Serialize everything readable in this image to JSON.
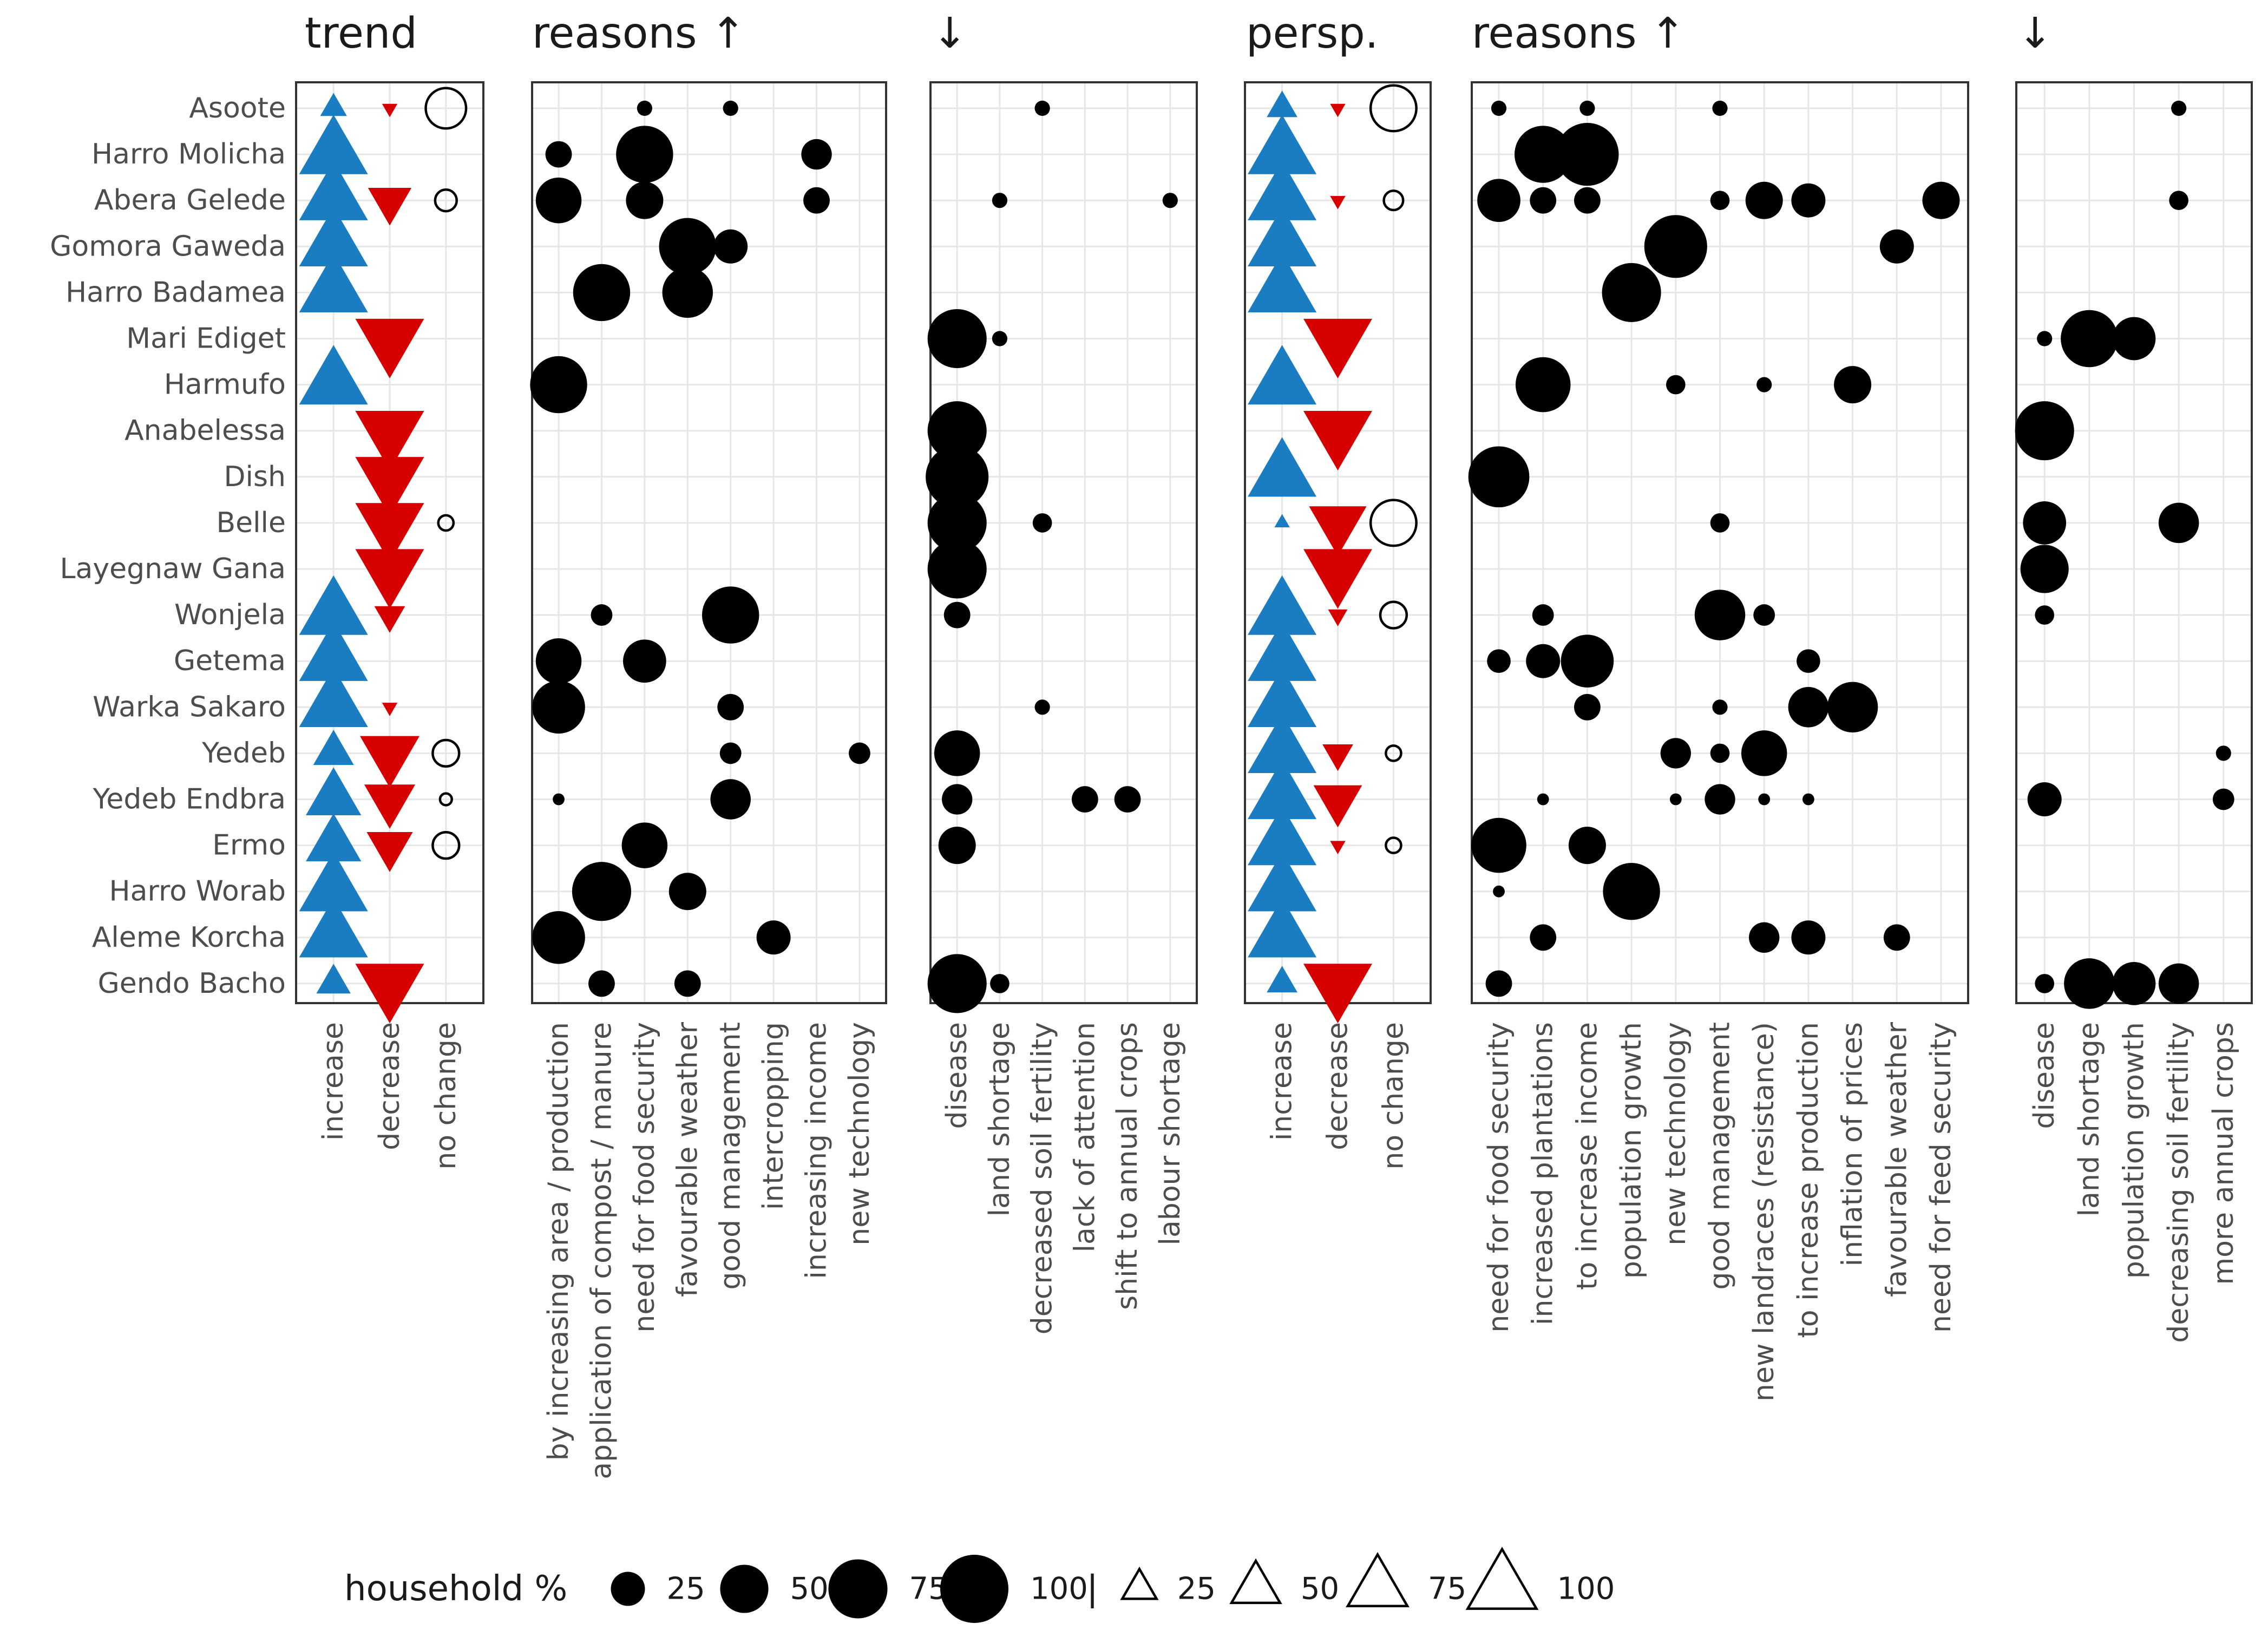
{
  "chart_data": {
    "type": "scatter",
    "rows": [
      "Asoote",
      "Harro Molicha",
      "Abera Gelede",
      "Gomora Gaweda",
      "Harro Badamea",
      "Mari Ediget",
      "Harmufo",
      "Anabelessa",
      "Dish",
      "Belle",
      "Layegnaw Gana",
      "Wonjela",
      "Getema",
      "Warka Sakaro",
      "Yedeb",
      "Yedeb Endbra",
      "Ermo",
      "Harro Worab",
      "Aleme Korcha",
      "Gendo Bacho"
    ],
    "colors": {
      "increase": "#1a7cc1",
      "decrease": "#d60000",
      "no_change": "#000000",
      "dot": "#000000",
      "grid": "#e6e6e6",
      "frame": "#333333",
      "text": "#4d4d4d",
      "title": "#1a1a1a"
    },
    "size_scale": [
      0,
      100
    ],
    "panels": [
      {
        "id": "trend",
        "title": "trend",
        "kind": "triangles",
        "columns": [
          "increase",
          "decrease",
          "no change"
        ],
        "points": [
          [
            0,
            0,
            15
          ],
          [
            0,
            1,
            5
          ],
          [
            0,
            2,
            35
          ],
          [
            1,
            0,
            100
          ],
          [
            2,
            0,
            100
          ],
          [
            2,
            1,
            40
          ],
          [
            2,
            2,
            10
          ],
          [
            3,
            0,
            100
          ],
          [
            4,
            0,
            100
          ],
          [
            5,
            1,
            100
          ],
          [
            6,
            0,
            100
          ],
          [
            7,
            1,
            100
          ],
          [
            8,
            1,
            100
          ],
          [
            9,
            1,
            100
          ],
          [
            9,
            2,
            5
          ],
          [
            10,
            1,
            100
          ],
          [
            11,
            0,
            100
          ],
          [
            11,
            1,
            20
          ],
          [
            12,
            0,
            100
          ],
          [
            13,
            0,
            100
          ],
          [
            13,
            1,
            5
          ],
          [
            14,
            0,
            35
          ],
          [
            14,
            1,
            75
          ],
          [
            14,
            2,
            15
          ],
          [
            15,
            0,
            65
          ],
          [
            15,
            1,
            55
          ],
          [
            15,
            2,
            3
          ],
          [
            16,
            0,
            65
          ],
          [
            16,
            1,
            45
          ],
          [
            16,
            2,
            15
          ],
          [
            17,
            0,
            100
          ],
          [
            18,
            0,
            100
          ],
          [
            19,
            0,
            25
          ],
          [
            19,
            1,
            100
          ]
        ]
      },
      {
        "id": "trend-reasons-up",
        "title": "reasons ↑",
        "kind": "dots",
        "columns": [
          "by increasing area / production",
          "application of compost / manure",
          "need for food security",
          "favourable weather",
          "good management",
          "intercropping",
          "increasing income",
          "new technology"
        ],
        "points": [
          [
            0,
            2,
            5
          ],
          [
            0,
            4,
            5
          ],
          [
            1,
            0,
            15
          ],
          [
            1,
            2,
            70
          ],
          [
            1,
            6,
            20
          ],
          [
            2,
            0,
            45
          ],
          [
            2,
            2,
            30
          ],
          [
            2,
            6,
            15
          ],
          [
            3,
            3,
            70
          ],
          [
            3,
            4,
            25
          ],
          [
            4,
            1,
            70
          ],
          [
            4,
            3,
            55
          ],
          [
            6,
            0,
            70
          ],
          [
            11,
            1,
            10
          ],
          [
            11,
            4,
            70
          ],
          [
            12,
            0,
            45
          ],
          [
            12,
            2,
            40
          ],
          [
            13,
            0,
            60
          ],
          [
            13,
            4,
            15
          ],
          [
            14,
            4,
            10
          ],
          [
            14,
            7,
            10
          ],
          [
            15,
            0,
            3
          ],
          [
            15,
            4,
            35
          ],
          [
            16,
            2,
            45
          ],
          [
            17,
            1,
            75
          ],
          [
            17,
            3,
            30
          ],
          [
            18,
            0,
            60
          ],
          [
            18,
            5,
            25
          ],
          [
            19,
            1,
            15
          ],
          [
            19,
            3,
            15
          ]
        ]
      },
      {
        "id": "trend-reasons-down",
        "title": "↓",
        "kind": "dots",
        "columns": [
          "disease",
          "land shortage",
          "decreased soil fertility",
          "lack of attention",
          "shift to annual crops",
          "labour shortage"
        ],
        "points": [
          [
            0,
            2,
            5
          ],
          [
            2,
            1,
            5
          ],
          [
            2,
            5,
            5
          ],
          [
            5,
            0,
            75
          ],
          [
            5,
            1,
            5
          ],
          [
            7,
            0,
            75
          ],
          [
            8,
            0,
            85
          ],
          [
            9,
            0,
            75
          ],
          [
            9,
            2,
            8
          ],
          [
            10,
            0,
            75
          ],
          [
            11,
            0,
            15
          ],
          [
            13,
            2,
            5
          ],
          [
            14,
            0,
            45
          ],
          [
            15,
            0,
            20
          ],
          [
            15,
            3,
            15
          ],
          [
            15,
            4,
            15
          ],
          [
            16,
            0,
            30
          ],
          [
            19,
            0,
            75
          ],
          [
            19,
            1,
            8
          ]
        ]
      },
      {
        "id": "persp",
        "title": "persp.",
        "kind": "triangles",
        "columns": [
          "increase",
          "decrease",
          "no change"
        ],
        "points": [
          [
            0,
            0,
            20
          ],
          [
            0,
            1,
            5
          ],
          [
            0,
            2,
            45
          ],
          [
            1,
            0,
            100
          ],
          [
            2,
            0,
            100
          ],
          [
            2,
            1,
            5
          ],
          [
            2,
            2,
            8
          ],
          [
            3,
            0,
            100
          ],
          [
            4,
            0,
            100
          ],
          [
            5,
            1,
            100
          ],
          [
            6,
            0,
            100
          ],
          [
            7,
            1,
            100
          ],
          [
            8,
            0,
            100
          ],
          [
            9,
            0,
            5
          ],
          [
            9,
            1,
            70
          ],
          [
            9,
            2,
            45
          ],
          [
            10,
            1,
            100
          ],
          [
            11,
            0,
            100
          ],
          [
            11,
            1,
            8
          ],
          [
            11,
            2,
            15
          ],
          [
            12,
            0,
            100
          ],
          [
            13,
            0,
            100
          ],
          [
            14,
            0,
            100
          ],
          [
            14,
            1,
            20
          ],
          [
            14,
            2,
            5
          ],
          [
            15,
            0,
            100
          ],
          [
            15,
            1,
            50
          ],
          [
            16,
            0,
            100
          ],
          [
            16,
            1,
            5
          ],
          [
            16,
            2,
            5
          ],
          [
            17,
            0,
            100
          ],
          [
            18,
            0,
            100
          ],
          [
            19,
            0,
            20
          ],
          [
            19,
            1,
            100
          ]
        ]
      },
      {
        "id": "persp-reasons-up",
        "title": "reasons ↑",
        "kind": "dots",
        "columns": [
          "need for food security",
          "increased plantations",
          "to increase income",
          "population growth",
          "new technology",
          "good management",
          "new landraces (resistance)",
          "to increase production",
          "inflation of prices",
          "favourable weather",
          "need for feed security"
        ],
        "points": [
          [
            0,
            0,
            5
          ],
          [
            0,
            2,
            5
          ],
          [
            0,
            5,
            5
          ],
          [
            1,
            1,
            70
          ],
          [
            1,
            2,
            85
          ],
          [
            2,
            0,
            40
          ],
          [
            2,
            1,
            15
          ],
          [
            2,
            2,
            15
          ],
          [
            2,
            5,
            8
          ],
          [
            2,
            6,
            30
          ],
          [
            2,
            7,
            25
          ],
          [
            2,
            10,
            30
          ],
          [
            3,
            4,
            85
          ],
          [
            3,
            9,
            25
          ],
          [
            4,
            3,
            75
          ],
          [
            6,
            1,
            65
          ],
          [
            6,
            4,
            8
          ],
          [
            6,
            6,
            5
          ],
          [
            6,
            8,
            30
          ],
          [
            8,
            0,
            80
          ],
          [
            9,
            5,
            8
          ],
          [
            11,
            1,
            10
          ],
          [
            11,
            5,
            55
          ],
          [
            11,
            6,
            10
          ],
          [
            12,
            0,
            12
          ],
          [
            12,
            1,
            25
          ],
          [
            12,
            2,
            60
          ],
          [
            12,
            7,
            12
          ],
          [
            13,
            2,
            15
          ],
          [
            13,
            5,
            5
          ],
          [
            13,
            7,
            35
          ],
          [
            13,
            8,
            55
          ],
          [
            14,
            4,
            20
          ],
          [
            14,
            5,
            8
          ],
          [
            14,
            6,
            45
          ],
          [
            15,
            1,
            3
          ],
          [
            15,
            4,
            3
          ],
          [
            15,
            5,
            20
          ],
          [
            15,
            6,
            3
          ],
          [
            15,
            7,
            3
          ],
          [
            16,
            0,
            65
          ],
          [
            16,
            2,
            30
          ],
          [
            17,
            0,
            3
          ],
          [
            17,
            3,
            70
          ],
          [
            18,
            1,
            15
          ],
          [
            18,
            6,
            20
          ],
          [
            18,
            7,
            25
          ],
          [
            18,
            9,
            15
          ],
          [
            19,
            0,
            15
          ]
        ]
      },
      {
        "id": "persp-reasons-down",
        "title": "↓",
        "kind": "dots",
        "columns": [
          "disease",
          "land shortage",
          "population growth",
          "decreasing soil fertility",
          "more annual crops"
        ],
        "points": [
          [
            0,
            3,
            5
          ],
          [
            2,
            3,
            8
          ],
          [
            5,
            0,
            5
          ],
          [
            5,
            1,
            70
          ],
          [
            5,
            2,
            40
          ],
          [
            7,
            0,
            75
          ],
          [
            9,
            0,
            40
          ],
          [
            9,
            3,
            35
          ],
          [
            10,
            0,
            50
          ],
          [
            11,
            0,
            8
          ],
          [
            14,
            4,
            5
          ],
          [
            15,
            0,
            25
          ],
          [
            15,
            4,
            10
          ],
          [
            19,
            0,
            8
          ],
          [
            19,
            1,
            55
          ],
          [
            19,
            2,
            40
          ],
          [
            19,
            3,
            35
          ]
        ]
      }
    ],
    "legend": {
      "title": "household %",
      "dot_values": [
        25,
        50,
        75,
        100
      ],
      "separator": "|",
      "triangle_values": [
        25,
        50,
        75,
        100
      ]
    }
  }
}
